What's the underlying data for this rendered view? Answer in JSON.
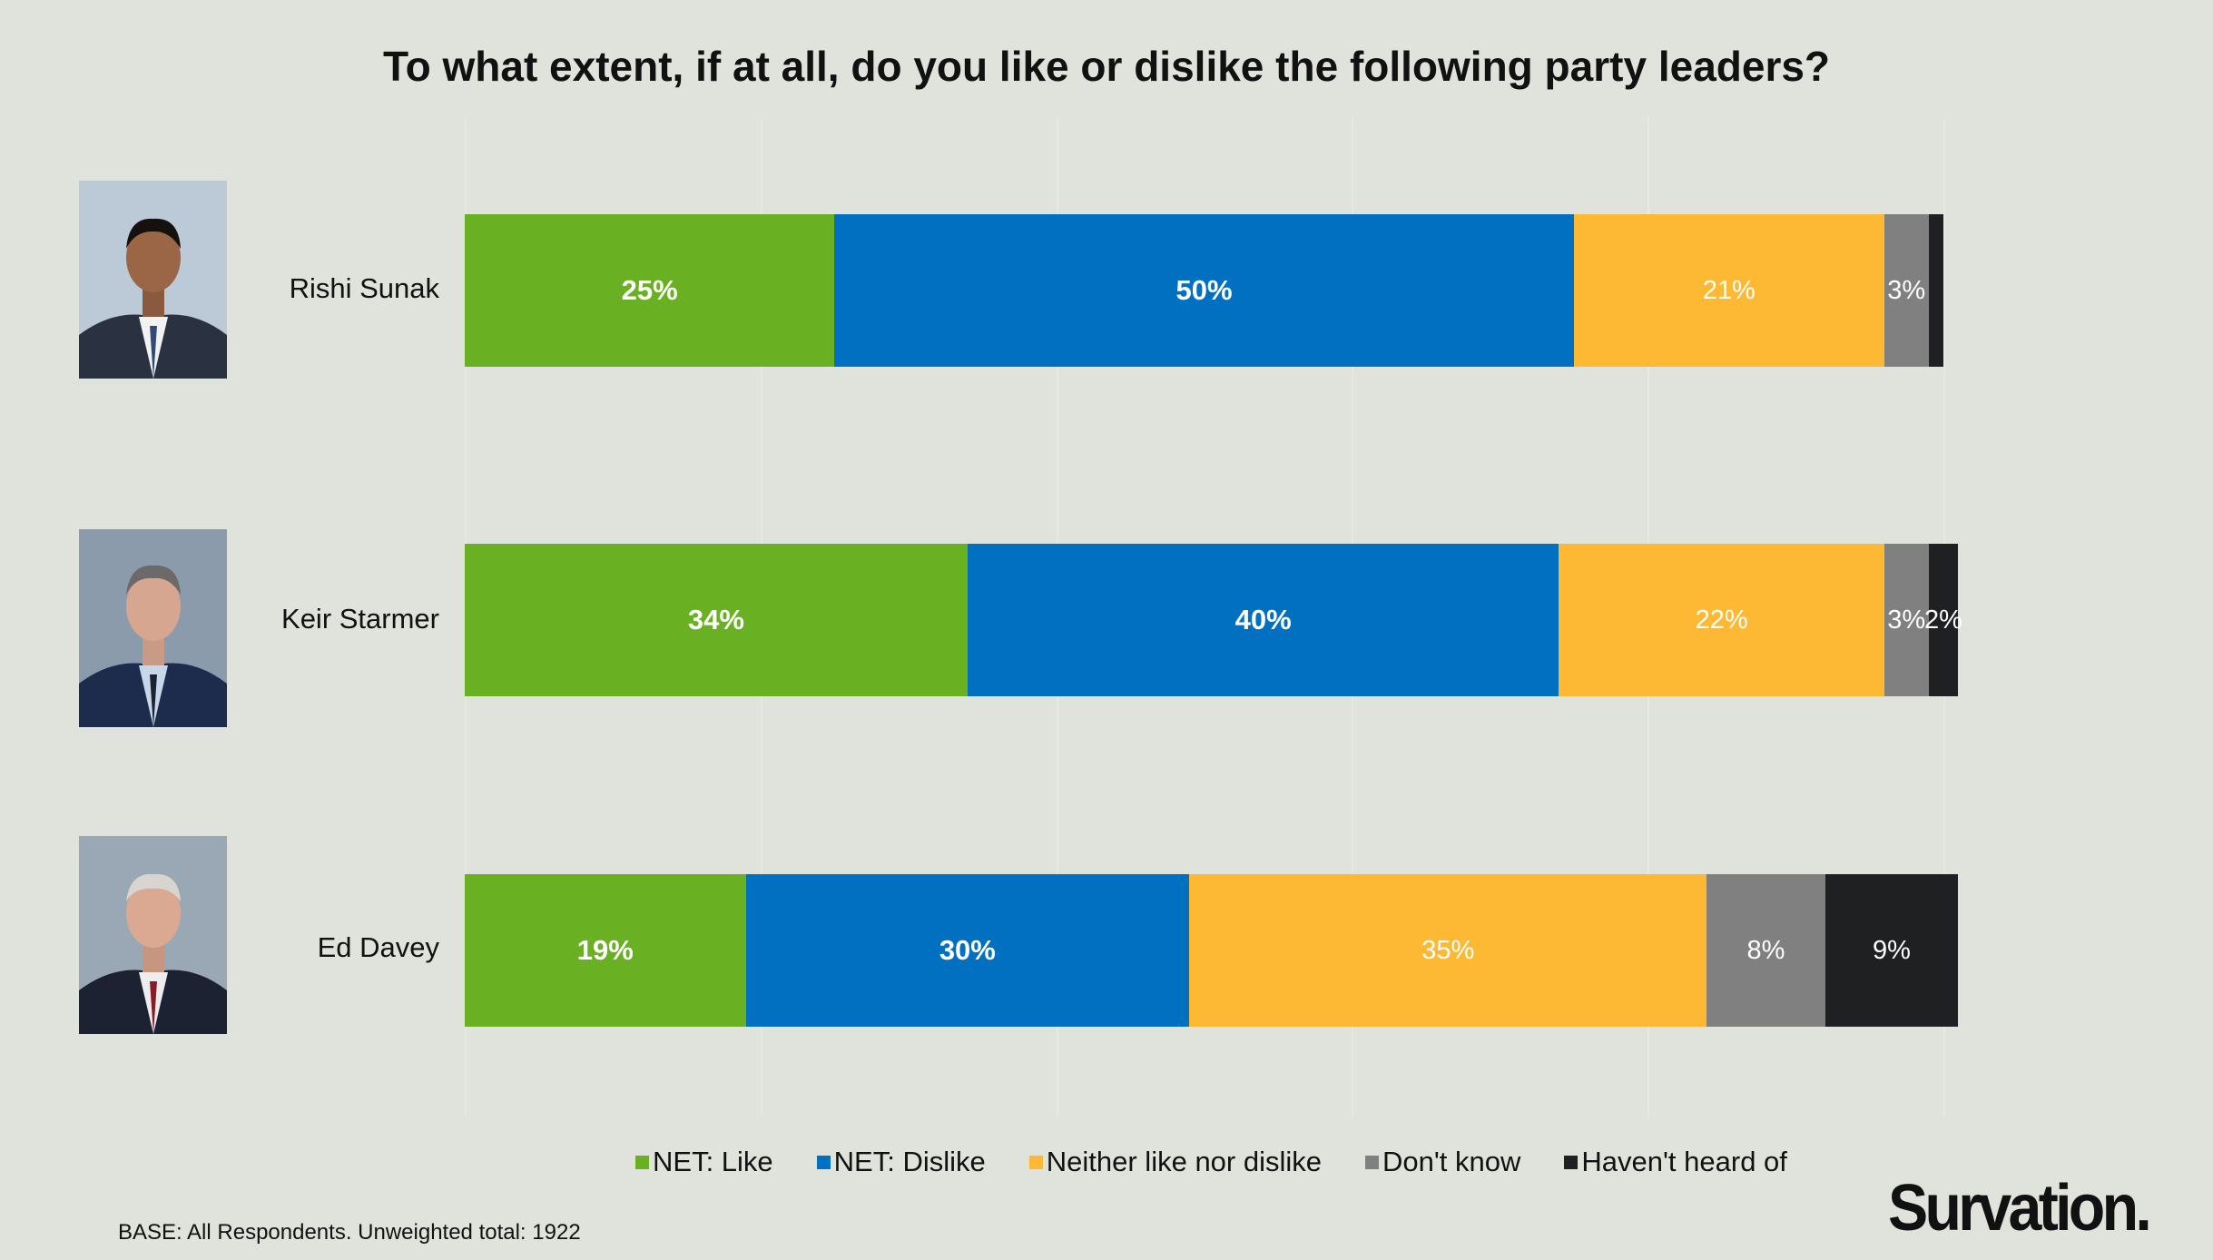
{
  "title": "To what extent, if at all, do you like or dislike the following party leaders?",
  "chart_data": {
    "type": "bar",
    "orientation": "horizontal-stacked-100",
    "title": "To what extent, if at all, do you like or dislike the following party leaders?",
    "categories": [
      "Rishi Sunak",
      "Keir Starmer",
      "Ed Davey"
    ],
    "series": [
      {
        "name": "NET: Like",
        "color": "#6ab023",
        "values": [
          25,
          34,
          19
        ],
        "labels": [
          "25%",
          "34%",
          "19%"
        ]
      },
      {
        "name": "NET: Dislike",
        "color": "#0270c1",
        "values": [
          50,
          40,
          30
        ],
        "labels": [
          "50%",
          "40%",
          "30%"
        ]
      },
      {
        "name": "Neither like nor dislike",
        "color": "#fdb933",
        "values": [
          21,
          22,
          35
        ],
        "labels": [
          "21%",
          "22%",
          "35%"
        ]
      },
      {
        "name": "Don't know",
        "color": "#808080",
        "values": [
          3,
          3,
          8
        ],
        "labels": [
          "3%",
          "3%",
          "8%"
        ]
      },
      {
        "name": "Haven't heard of",
        "color": "#1f2022",
        "values": [
          1,
          2,
          9
        ],
        "labels": [
          null,
          "2%",
          "9%"
        ]
      }
    ],
    "xlim": [
      0,
      100
    ],
    "legend": "bottom",
    "grid": true
  },
  "footer": {
    "base": "BASE: All Respondents. Unweighted total: 1922",
    "logo": "Survation."
  }
}
